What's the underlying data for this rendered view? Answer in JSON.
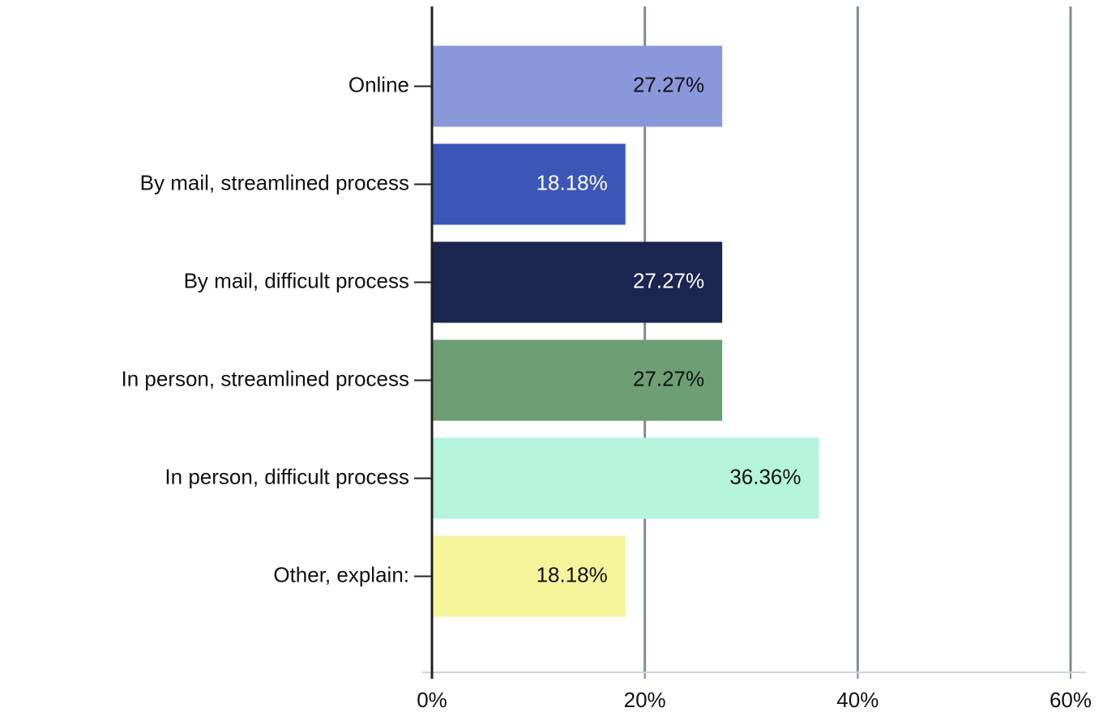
{
  "chart_data": {
    "type": "barh",
    "categories": [
      "Online",
      "By mail, streamlined process",
      "By mail, difficult process",
      "In person, streamlined process",
      "In person, difficult process",
      "Other, explain:"
    ],
    "values": [
      27.27,
      18.18,
      27.27,
      27.27,
      36.36,
      18.18
    ],
    "value_labels": [
      "27.27%",
      "18.18%",
      "27.27%",
      "27.27%",
      "36.36%",
      "18.18%"
    ],
    "colors": [
      "#8a97db",
      "#3c56b8",
      "#1a2550",
      "#6e9e74",
      "#b5f5dd",
      "#f7f59b"
    ],
    "xlim": [
      0,
      60
    ],
    "xticks": [
      {
        "value": 0,
        "label": "0%"
      },
      {
        "value": 20,
        "label": "20%"
      },
      {
        "value": 40,
        "label": "40%"
      },
      {
        "value": 60,
        "label": "60%"
      }
    ],
    "grid": true
  }
}
